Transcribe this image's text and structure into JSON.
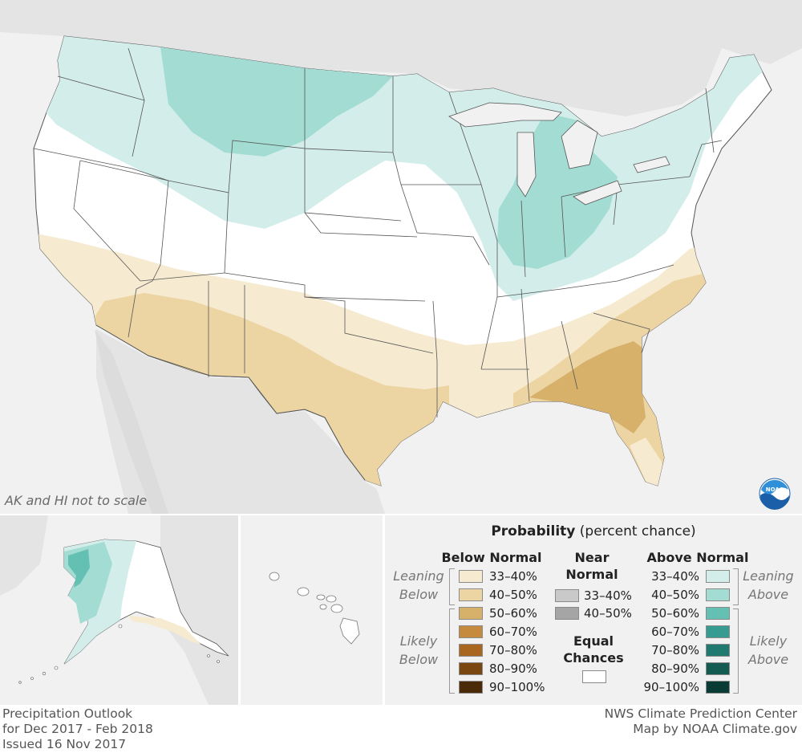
{
  "map": {
    "scale_note": "AK and HI not to scale",
    "logo_text": "NOAA"
  },
  "legend": {
    "title_bold": "Probability",
    "title_rest": "(percent chance)",
    "below_header": "Below Normal",
    "near_header_line1": "Near",
    "near_header_line2": "Normal",
    "above_header": "Above Normal",
    "equal_line1": "Equal",
    "equal_line2": "Chances",
    "leaning_below_1": "Leaning",
    "leaning_below_2": "Below",
    "likely_below_1": "Likely",
    "likely_below_2": "Below",
    "leaning_above_1": "Leaning",
    "leaning_above_2": "Above",
    "likely_above_1": "Likely",
    "likely_above_2": "Above",
    "below": [
      {
        "label": "33–40%",
        "color": "#f6ead0"
      },
      {
        "label": "40–50%",
        "color": "#ecd5a3"
      },
      {
        "label": "50–60%",
        "color": "#d7b06a"
      },
      {
        "label": "60–70%",
        "color": "#c58a3e"
      },
      {
        "label": "70–80%",
        "color": "#a8661f"
      },
      {
        "label": "80–90%",
        "color": "#7a4710"
      },
      {
        "label": "90–100%",
        "color": "#4a2a07"
      }
    ],
    "near": [
      {
        "label": "33–40%",
        "color": "#c9c9c9"
      },
      {
        "label": "40–50%",
        "color": "#a5a5a5"
      }
    ],
    "above": [
      {
        "label": "33–40%",
        "color": "#d3eeea"
      },
      {
        "label": "40–50%",
        "color": "#a3dcd3"
      },
      {
        "label": "50–60%",
        "color": "#63c0b3"
      },
      {
        "label": "60–70%",
        "color": "#369c91"
      },
      {
        "label": "70–80%",
        "color": "#217a70"
      },
      {
        "label": "80–90%",
        "color": "#145b52"
      },
      {
        "label": "90–100%",
        "color": "#0a3b35"
      }
    ],
    "equal_color": "#ffffff"
  },
  "footer": {
    "left_line1": "Precipitation Outlook",
    "left_line2": "for Dec 2017 - Feb 2018",
    "left_line3": "Issued 16 Nov 2017",
    "right_line1": "NWS Climate Prediction Center",
    "right_line2": "Map by NOAA Climate.gov"
  }
}
